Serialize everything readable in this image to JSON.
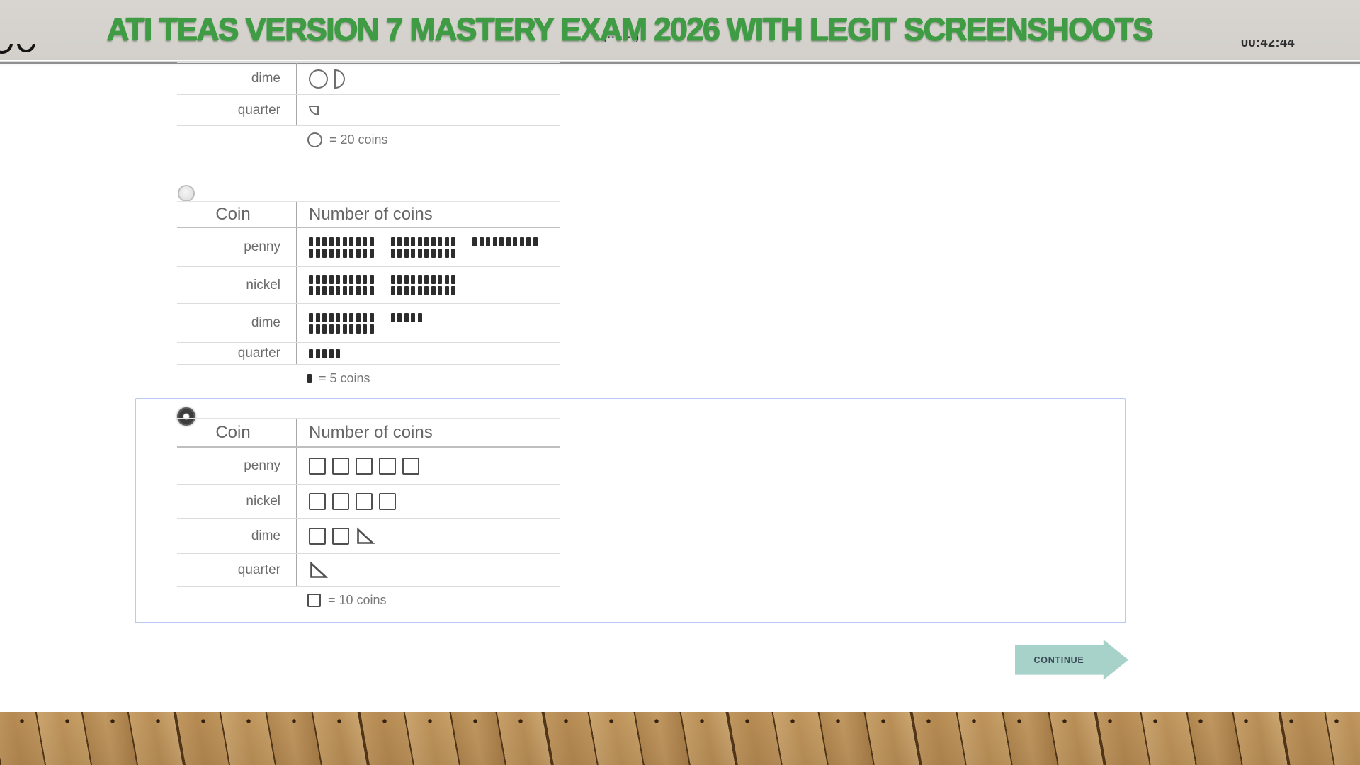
{
  "header": {
    "title": "ATI TEAS VERSION 7 MASTERY EXAM 2026 WITH LEGIT SCREENSHOOTS",
    "obscured_text": "(·······)",
    "timer_partial": "00:42:44"
  },
  "options": [
    {
      "id": "a",
      "partial": true,
      "show_radio": false,
      "selected": false,
      "rows": [
        {
          "label": "dime",
          "icons": [
            "circle",
            "half-circle"
          ]
        },
        {
          "label": "quarter",
          "icons": [
            "quarter-small"
          ]
        }
      ],
      "legend_icon": "circle",
      "legend_text": "= 20 coins"
    },
    {
      "id": "b",
      "partial": false,
      "show_radio": true,
      "selected": false,
      "header": {
        "coin": "Coin",
        "count": "Number of coins"
      },
      "rows": [
        {
          "label": "penny",
          "tally_groups": [
            [
              10,
              10
            ],
            [
              10,
              10
            ],
            [
              10,
              0
            ]
          ]
        },
        {
          "label": "nickel",
          "tally_groups": [
            [
              10,
              10
            ],
            [
              10,
              10
            ]
          ]
        },
        {
          "label": "dime",
          "tally_groups": [
            [
              10,
              10
            ],
            [
              5,
              0
            ]
          ]
        },
        {
          "label": "quarter",
          "tally_groups": [
            [
              5,
              0
            ]
          ]
        }
      ],
      "legend_icon": "tally",
      "legend_text": "= 5 coins"
    },
    {
      "id": "c",
      "partial": false,
      "show_radio": true,
      "selected": true,
      "highlighted": true,
      "header": {
        "coin": "Coin",
        "count": "Number of coins"
      },
      "rows": [
        {
          "label": "penny",
          "icons": [
            "square",
            "square",
            "square",
            "square",
            "square"
          ]
        },
        {
          "label": "nickel",
          "icons": [
            "square",
            "square",
            "square",
            "square"
          ]
        },
        {
          "label": "dime",
          "icons": [
            "square",
            "square",
            "triangle"
          ]
        },
        {
          "label": "quarter",
          "icons": [
            "triangle"
          ]
        }
      ],
      "legend_icon": "square",
      "legend_text": "= 10 coins"
    }
  ],
  "footer": {
    "continue_label": "CONTINUE"
  },
  "colors": {
    "title_green": "#3f9c45",
    "band_gray": "#d5d2cd",
    "selection_border": "#bcc9f2",
    "continue_teal": "#a7d2ca",
    "tally_dark": "#2d2d2d",
    "wood_brown": "#c49a62"
  }
}
